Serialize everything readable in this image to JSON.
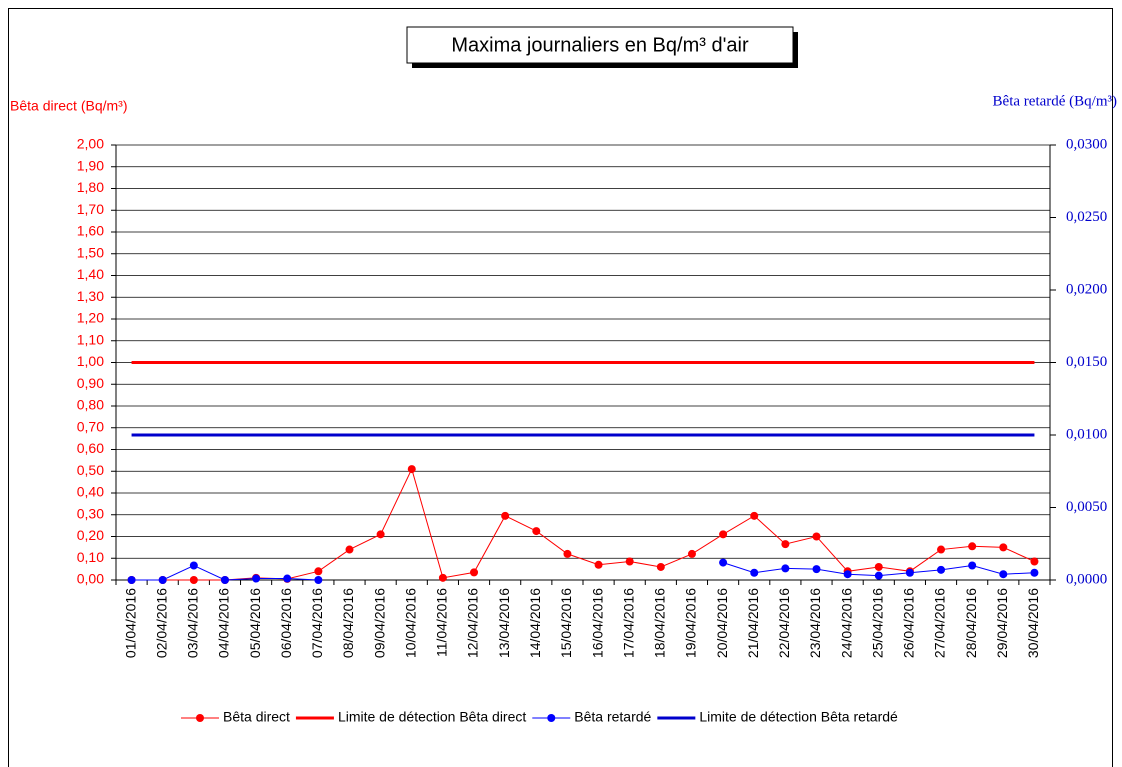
{
  "chart_data": {
    "type": "line",
    "title": "Maxima journaliers en Bq/m³ d'air",
    "ylabel": "Bêta direct (Bq/m³)",
    "y2label": "Bêta retardé (Bq/m³)",
    "categories": [
      "01/04/2016",
      "02/04/2016",
      "03/04/2016",
      "04/04/2016",
      "05/04/2016",
      "06/04/2016",
      "07/04/2016",
      "08/04/2016",
      "09/04/2016",
      "10/04/2016",
      "11/04/2016",
      "12/04/2016",
      "13/04/2016",
      "14/04/2016",
      "15/04/2016",
      "16/04/2016",
      "17/04/2016",
      "18/04/2016",
      "19/04/2016",
      "20/04/2016",
      "21/04/2016",
      "22/04/2016",
      "23/04/2016",
      "24/04/2016",
      "25/04/2016",
      "26/04/2016",
      "27/04/2016",
      "28/04/2016",
      "29/04/2016",
      "30/04/2016"
    ],
    "series": [
      {
        "name": "Bêta direct",
        "color": "#ff0000",
        "markers": true,
        "values": [
          0,
          0,
          0,
          0,
          0.01,
          0.005,
          0.04,
          0.14,
          0.21,
          0.51,
          0.01,
          0.035,
          0.295,
          0.225,
          0.12,
          0.07,
          0.085,
          0.06,
          0.12,
          0.21,
          0.295,
          0.165,
          0.2,
          0.04,
          0.06,
          0.04,
          0.14,
          0.155,
          0.15,
          0.085
        ]
      },
      {
        "name": "Limite de détection Bêta direct",
        "color": "#ff0000",
        "markers": false,
        "values": [
          1,
          1,
          1,
          1,
          1,
          1,
          1,
          1,
          1,
          1,
          1,
          1,
          1,
          1,
          1,
          1,
          1,
          1,
          1,
          1,
          1,
          1,
          1,
          1,
          1,
          1,
          1,
          1,
          1,
          1
        ]
      },
      {
        "name": "Bêta retardé",
        "color": "#0000ff",
        "markers": true,
        "axis": "y2",
        "values": [
          0,
          0,
          0.001,
          0,
          0.0001,
          0.0001,
          0,
          null,
          null,
          null,
          null,
          null,
          null,
          null,
          null,
          null,
          null,
          null,
          null,
          0.0012,
          0.0005,
          0.0008,
          0.00075,
          0.0004,
          0.0003,
          0.0005,
          0.0007,
          0.001,
          0.0004,
          0.0005
        ]
      },
      {
        "name": "Limite de détection Bêta retardé",
        "color": "#0000cc",
        "markers": false,
        "axis": "y2",
        "values": [
          0.01,
          0.01,
          0.01,
          0.01,
          0.01,
          0.01,
          0.01,
          0.01,
          0.01,
          0.01,
          0.01,
          0.01,
          0.01,
          0.01,
          0.01,
          0.01,
          0.01,
          0.01,
          0.01,
          0.01,
          0.01,
          0.01,
          0.01,
          0.01,
          0.01,
          0.01,
          0.01,
          0.01,
          0.01,
          0.01
        ]
      }
    ],
    "ylim": [
      0,
      2
    ],
    "yticks": [
      {
        "value": 0,
        "label": "0,00"
      },
      {
        "value": 0.1,
        "label": "0,10"
      },
      {
        "value": 0.2,
        "label": "0,20"
      },
      {
        "value": 0.3,
        "label": "0,30"
      },
      {
        "value": 0.4,
        "label": "0,40"
      },
      {
        "value": 0.5,
        "label": "0,50"
      },
      {
        "value": 0.6,
        "label": "0,60"
      },
      {
        "value": 0.7,
        "label": "0,70"
      },
      {
        "value": 0.8,
        "label": "0,80"
      },
      {
        "value": 0.9,
        "label": "0,90"
      },
      {
        "value": 1,
        "label": "1,00"
      },
      {
        "value": 1.1,
        "label": "1,10"
      },
      {
        "value": 1.2,
        "label": "1,20"
      },
      {
        "value": 1.3,
        "label": "1,30"
      },
      {
        "value": 1.4,
        "label": "1,40"
      },
      {
        "value": 1.5,
        "label": "1,50"
      },
      {
        "value": 1.6,
        "label": "1,60"
      },
      {
        "value": 1.7,
        "label": "1,70"
      },
      {
        "value": 1.8,
        "label": "1,80"
      },
      {
        "value": 1.9,
        "label": "1,90"
      },
      {
        "value": 2,
        "label": "2,00"
      }
    ],
    "y2lim": [
      0,
      0.03
    ],
    "y2ticks": [
      {
        "value": 0,
        "label": "0,0000"
      },
      {
        "value": 0.005,
        "label": "0,0050"
      },
      {
        "value": 0.01,
        "label": "0,0100"
      },
      {
        "value": 0.015,
        "label": "0,0150"
      },
      {
        "value": 0.02,
        "label": "0,0200"
      },
      {
        "value": 0.025,
        "label": "0,0250"
      },
      {
        "value": 0.03,
        "label": "0,0300"
      }
    ],
    "grid": true,
    "legend": "bottom"
  }
}
